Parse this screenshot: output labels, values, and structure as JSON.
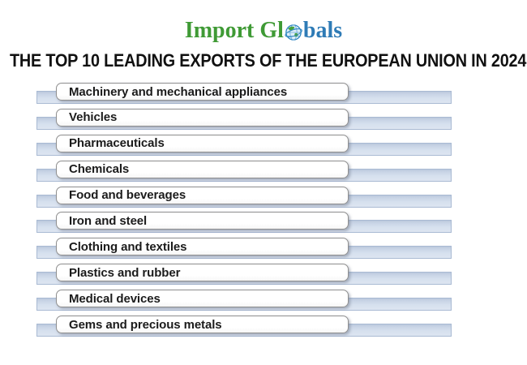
{
  "logo": {
    "text_left": "Import Gl",
    "text_right": "bals",
    "icon": "globe-icon"
  },
  "title": "THE TOP 10 LEADING EXPORTS OF THE EUROPEAN UNION IN 2024",
  "list": {
    "items": [
      "Machinery and mechanical appliances",
      "Vehicles",
      "Pharmaceuticals",
      "Chemicals",
      "Food and beverages",
      "Iron and steel",
      "Clothing and textiles",
      "Plastics and rubber",
      "Medical devices",
      "Gems and precious metals"
    ]
  },
  "colors": {
    "logo_green": "#3f9a35",
    "logo_blue": "#2e7bb6",
    "title_color": "#111111",
    "bar_fill": "#d6e0ee",
    "bar_border": "#a9bad3",
    "pill_border": "#8f8f8f"
  }
}
